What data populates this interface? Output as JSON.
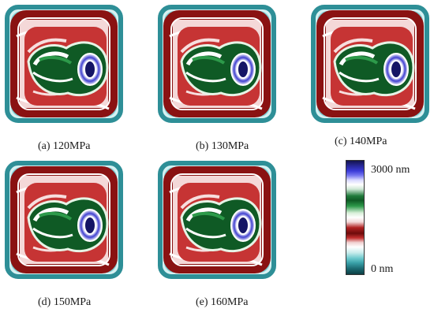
{
  "panels": [
    {
      "caption": "(a)  120MPa",
      "load_mpa": 120
    },
    {
      "caption": "(b)  130MPa",
      "load_mpa": 130
    },
    {
      "caption": "(c)  140MPa",
      "load_mpa": 140
    },
    {
      "caption": "(d)  150MPa",
      "load_mpa": 150
    },
    {
      "caption": "(e)  160MPa",
      "load_mpa": 160
    }
  ],
  "colorbar": {
    "max_label": "3000 nm",
    "min_label": "0 nm",
    "colors": [
      "#1a1a6e",
      "#ffffff",
      "#1f7a3a",
      "#ffffff",
      "#b02020",
      "#ffffff",
      "#3aa0a8",
      "#0d3f44"
    ]
  }
}
